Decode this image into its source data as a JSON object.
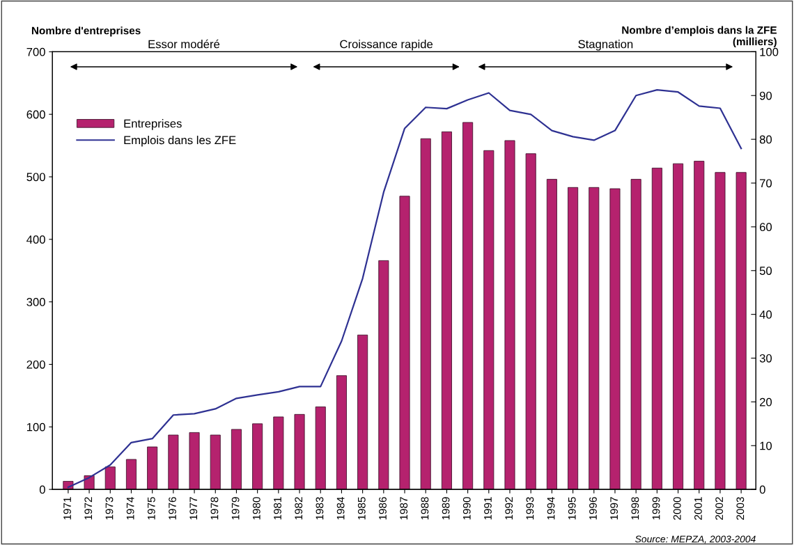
{
  "chart_data": {
    "type": "bar",
    "ylabel": "Nombre d'entreprises",
    "y2label": "Nombre d’emplois dans la ZFE\n(milliers)",
    "categories": [
      "1971",
      "1972",
      "1973",
      "1974",
      "1975",
      "1976",
      "1977",
      "1978",
      "1979",
      "1980",
      "1981",
      "1982",
      "1983",
      "1984",
      "1985",
      "1986",
      "1987",
      "1988",
      "1989",
      "1990",
      "1991",
      "1992",
      "1993",
      "1994",
      "1995",
      "1996",
      "1997",
      "1998",
      "1999",
      "2000",
      "2001",
      "2002",
      "2003"
    ],
    "series": [
      {
        "name": "Entreprises",
        "color": "#b5226e",
        "values": [
          13,
          22,
          36,
          48,
          68,
          87,
          91,
          87,
          96,
          105,
          116,
          120,
          132,
          182,
          247,
          366,
          469,
          561,
          572,
          587,
          542,
          558,
          537,
          496,
          483,
          483,
          481,
          496,
          514,
          521,
          525,
          507,
          507
        ]
      },
      {
        "name": "Emplois dans les ZFE",
        "type": "line",
        "axis": "y2",
        "color": "#2e3192",
        "values": [
          0.5,
          2.7,
          5.6,
          10.7,
          11.6,
          17.0,
          17.3,
          18.4,
          20.8,
          21.6,
          22.3,
          23.5,
          23.5,
          33.9,
          48.2,
          67.9,
          82.5,
          87.3,
          87.0,
          89.0,
          90.6,
          86.6,
          85.7,
          82.0,
          80.6,
          79.8,
          82.0,
          90.0,
          91.3,
          90.8,
          87.6,
          87.1,
          77.9
        ]
      }
    ],
    "ylim": [
      0,
      700
    ],
    "yticks": [
      0,
      100,
      200,
      300,
      400,
      500,
      600,
      700
    ],
    "y2lim": [
      0,
      100
    ],
    "y2ticks": [
      0,
      10,
      20,
      30,
      40,
      50,
      60,
      70,
      80,
      90,
      100
    ],
    "grid": false,
    "legend": "top left",
    "marker": "none",
    "line_style": "solid",
    "annotations": [
      "Essor modéré",
      "Croissance rapide",
      "Stagnation",
      "Source: MEPZA, 2003-2004"
    ]
  }
}
